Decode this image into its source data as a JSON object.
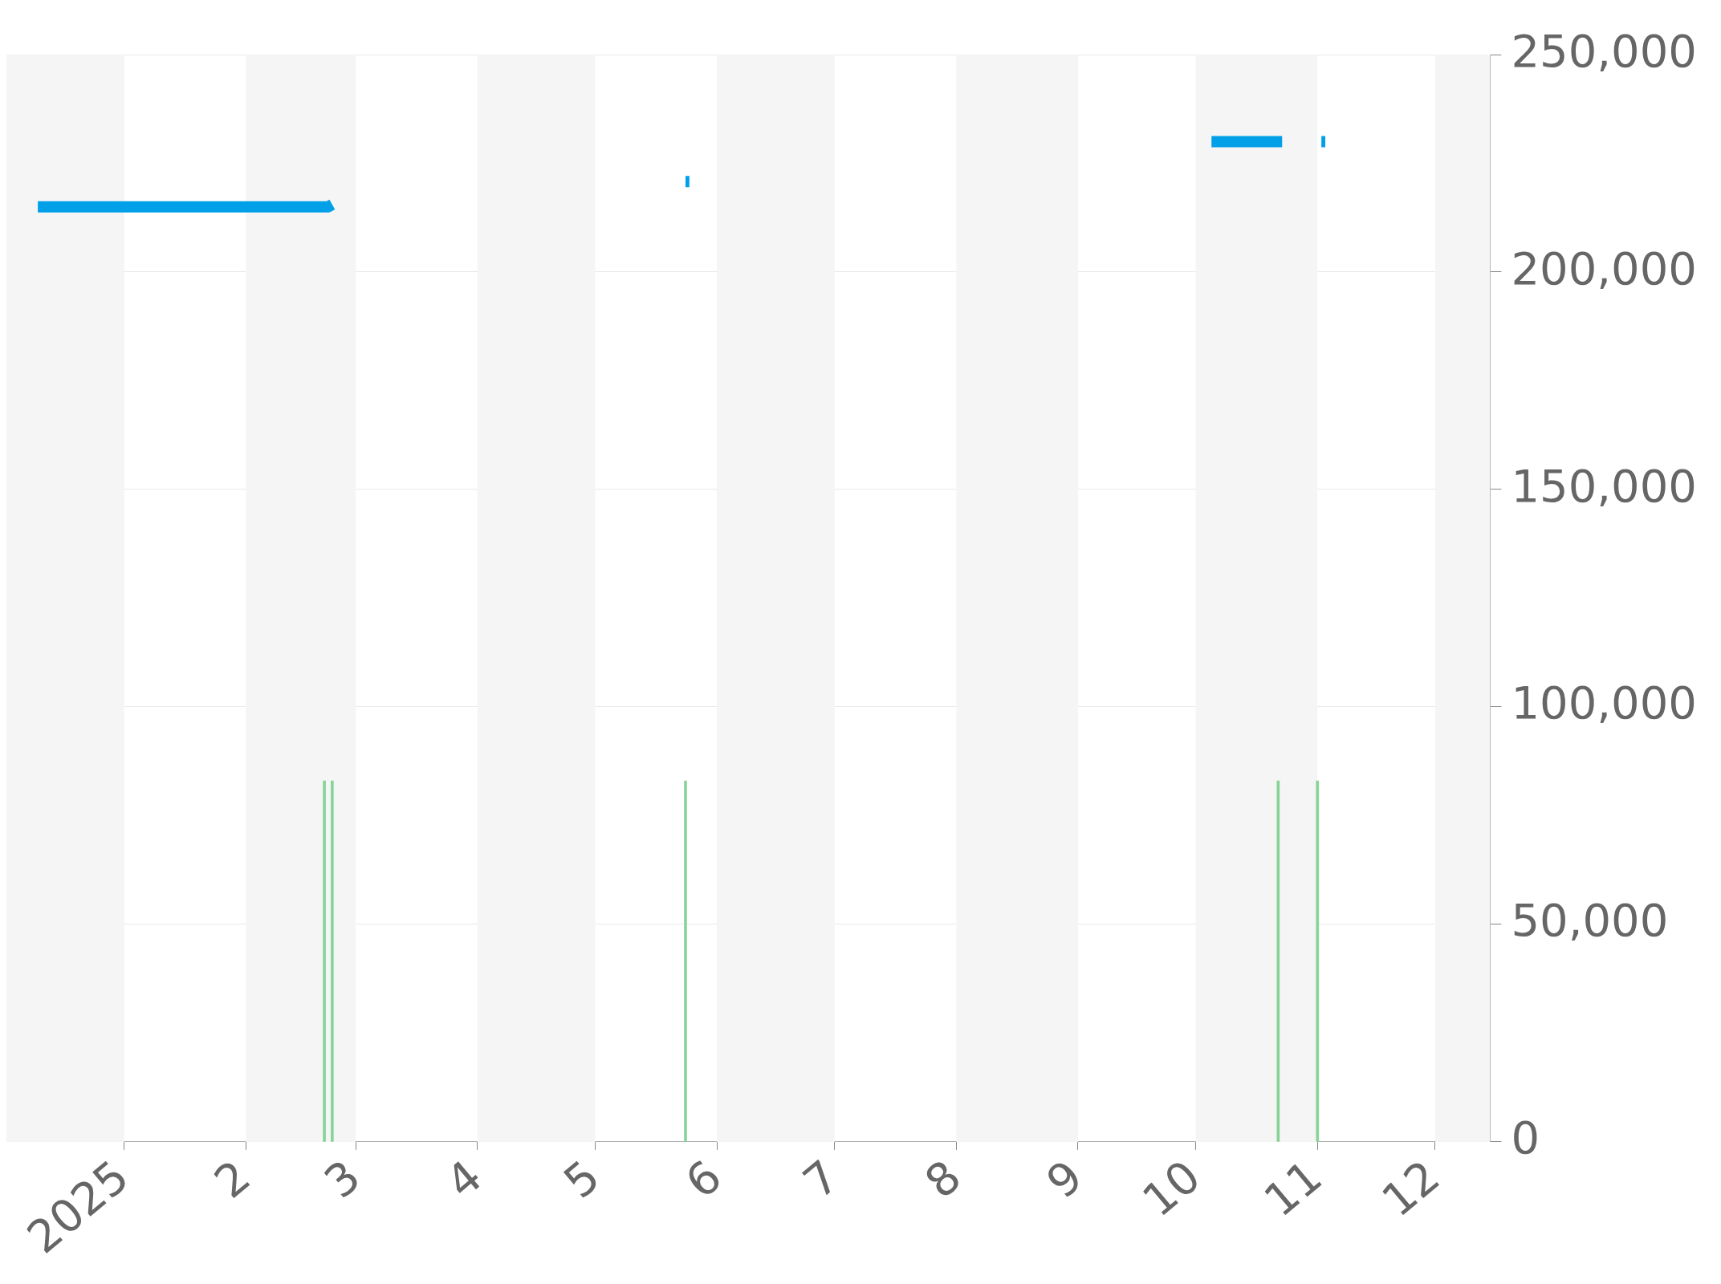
{
  "chart_data": {
    "type": "line",
    "series": [
      {
        "color": "#00a0e9",
        "x": [
          "2024-12-10",
          "2025-02-22",
          "2025-02-23",
          "2025-03-15",
          "2025-05-24",
          "2025-05-25",
          "2025-07-01",
          "2025-10-05",
          "2025-10-23",
          "2025-10-28",
          "2025-11-02",
          "2025-11-03"
        ],
        "values": [
          215000,
          215000,
          215500,
          null,
          220800,
          220800,
          null,
          230000,
          230000,
          null,
          230000,
          230000
        ]
      },
      {
        "type": "bar",
        "color": "#88d498",
        "x": [
          "2025-02-21",
          "2025-02-23",
          "2025-05-24",
          "2025-10-22",
          "2025-11-01"
        ],
        "values": [
          83000,
          83000,
          83000,
          83000,
          83000
        ]
      }
    ],
    "xlim": [
      "2024-12-02",
      "2025-12-15"
    ],
    "xticks": [
      {
        "value": "2025-01-01",
        "label": "2025"
      },
      {
        "value": "2025-02-01",
        "label": "2"
      },
      {
        "value": "2025-03-01",
        "label": "3"
      },
      {
        "value": "2025-04-01",
        "label": "4"
      },
      {
        "value": "2025-05-01",
        "label": "5"
      },
      {
        "value": "2025-06-01",
        "label": "6"
      },
      {
        "value": "2025-07-01",
        "label": "7"
      },
      {
        "value": "2025-08-01",
        "label": "8"
      },
      {
        "value": "2025-09-01",
        "label": "9"
      },
      {
        "value": "2025-10-01",
        "label": "10"
      },
      {
        "value": "2025-11-01",
        "label": "11"
      },
      {
        "value": "2025-12-01",
        "label": "12"
      }
    ],
    "ylim": [
      0,
      250000
    ],
    "yticks": [
      {
        "value": 0,
        "label": "0"
      },
      {
        "value": 50000,
        "label": "50,000"
      },
      {
        "value": 100000,
        "label": "100,000"
      },
      {
        "value": 150000,
        "label": "150,000"
      },
      {
        "value": 200000,
        "label": "200,000"
      },
      {
        "value": 250000,
        "label": "250,000"
      }
    ],
    "grid": "y",
    "legend": false,
    "marker": "none",
    "line_style": "solid",
    "bands": [
      {
        "axis": "x",
        "from": "2024-12-02",
        "to": "2025-01-01",
        "color": "#f5f5f5"
      },
      {
        "axis": "x",
        "from": "2025-02-01",
        "to": "2025-03-01",
        "color": "#f5f5f5"
      },
      {
        "axis": "x",
        "from": "2025-04-01",
        "to": "2025-05-01",
        "color": "#f5f5f5"
      },
      {
        "axis": "x",
        "from": "2025-06-01",
        "to": "2025-07-01",
        "color": "#f5f5f5"
      },
      {
        "axis": "x",
        "from": "2025-08-01",
        "to": "2025-09-01",
        "color": "#f5f5f5"
      },
      {
        "axis": "x",
        "from": "2025-10-01",
        "to": "2025-11-01",
        "color": "#f5f5f5"
      },
      {
        "axis": "x",
        "from": "2025-12-01",
        "to": "2025-12-15",
        "color": "#f5f5f5"
      }
    ]
  }
}
